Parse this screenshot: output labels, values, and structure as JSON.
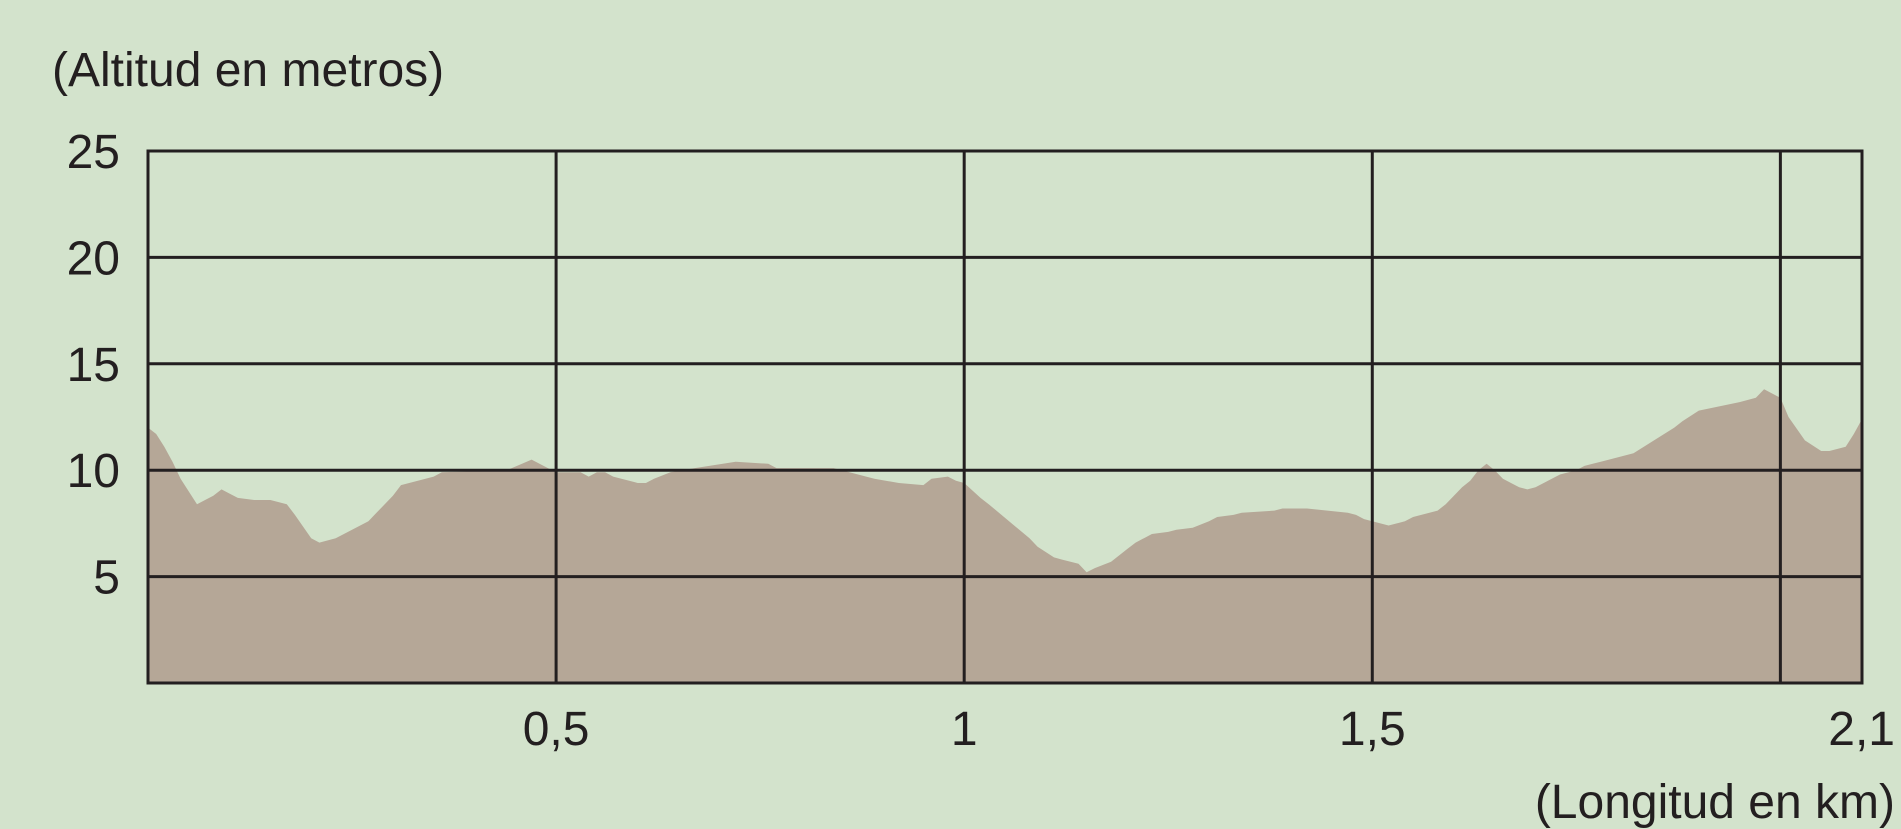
{
  "chart_data": {
    "type": "area",
    "ylabel": "(Altitud en metros)",
    "xlabel": "(Longitud en km)",
    "xlim": [
      0,
      2.1
    ],
    "ylim": [
      0,
      25
    ],
    "x_ticks": [
      {
        "value": 0.5,
        "label": "0,5"
      },
      {
        "value": 1,
        "label": "1"
      },
      {
        "value": 1.5,
        "label": "1,5"
      },
      {
        "value": 2.1,
        "label": "2,1"
      }
    ],
    "y_ticks": [
      {
        "value": 5,
        "label": "5"
      },
      {
        "value": 10,
        "label": "10"
      },
      {
        "value": 15,
        "label": "15"
      },
      {
        "value": 20,
        "label": "20"
      },
      {
        "value": 25,
        "label": "25"
      }
    ],
    "x_gridlines": [
      0.5,
      1,
      1.5,
      2.0
    ],
    "y_gridlines": [
      5,
      10,
      15,
      20
    ],
    "grid": true,
    "colors": {
      "area": "#b5a797",
      "grid": "#231f20",
      "background": "#d3e3cc"
    },
    "series": [
      {
        "x": [
          0,
          0.01,
          0.02,
          0.03,
          0.04,
          0.06,
          0.07,
          0.08,
          0.09,
          0.1,
          0.11,
          0.13,
          0.15,
          0.17,
          0.18,
          0.2,
          0.21,
          0.23,
          0.24,
          0.27,
          0.28,
          0.3,
          0.31,
          0.35,
          0.36,
          0.44,
          0.47,
          0.49,
          0.5,
          0.53,
          0.54,
          0.55,
          0.56,
          0.57,
          0.6,
          0.61,
          0.62,
          0.64,
          0.67,
          0.72,
          0.76,
          0.77,
          0.84,
          0.87,
          0.88,
          0.89,
          0.92,
          0.95,
          0.96,
          0.98,
          0.99,
          1.0,
          1.02,
          1.03,
          1.08,
          1.09,
          1.11,
          1.12,
          1.14,
          1.15,
          1.16,
          1.18,
          1.2,
          1.21,
          1.23,
          1.25,
          1.26,
          1.28,
          1.3,
          1.31,
          1.33,
          1.34,
          1.38,
          1.39,
          1.42,
          1.47,
          1.48,
          1.49,
          1.5,
          1.51,
          1.52,
          1.53,
          1.54,
          1.55,
          1.58,
          1.59,
          1.6,
          1.61,
          1.62,
          1.63,
          1.64,
          1.65,
          1.66,
          1.67,
          1.68,
          1.69,
          1.7,
          1.71,
          1.72,
          1.73,
          1.75,
          1.76,
          1.77,
          1.78,
          1.79,
          1.82,
          1.87,
          1.88,
          1.9,
          1.95,
          1.97,
          1.98,
          2.0,
          2.01,
          2.03,
          2.05,
          2.06,
          2.08,
          2.09,
          2.1
        ],
        "y": [
          12,
          11.7,
          11.1,
          10.4,
          9.6,
          8.4,
          8.6,
          8.8,
          9.1,
          8.9,
          8.7,
          8.6,
          8.6,
          8.4,
          7.9,
          6.8,
          6.6,
          6.8,
          7.0,
          7.6,
          8.0,
          8.8,
          9.3,
          9.7,
          9.9,
          10.0,
          10.5,
          10.1,
          9.9,
          9.9,
          9.7,
          9.9,
          9.9,
          9.7,
          9.4,
          9.4,
          9.6,
          9.9,
          10.1,
          10.4,
          10.3,
          10.1,
          10.1,
          9.8,
          9.7,
          9.6,
          9.4,
          9.3,
          9.6,
          9.7,
          9.5,
          9.4,
          8.7,
          8.4,
          6.8,
          6.4,
          5.9,
          5.8,
          5.6,
          5.2,
          5.4,
          5.7,
          6.3,
          6.6,
          7.0,
          7.1,
          7.2,
          7.3,
          7.6,
          7.8,
          7.9,
          8.0,
          8.1,
          8.2,
          8.2,
          8.0,
          7.9,
          7.7,
          7.6,
          7.5,
          7.4,
          7.5,
          7.6,
          7.8,
          8.1,
          8.4,
          8.8,
          9.2,
          9.5,
          10.0,
          10.3,
          10.0,
          9.6,
          9.4,
          9.2,
          9.1,
          9.2,
          9.4,
          9.6,
          9.8,
          10.0,
          10.2,
          10.3,
          10.4,
          10.5,
          10.8,
          12.0,
          12.3,
          12.8,
          13.2,
          13.4,
          13.8,
          13.4,
          12.5,
          11.4,
          10.9,
          10.9,
          11.1,
          11.7,
          12.4
        ]
      }
    ]
  }
}
